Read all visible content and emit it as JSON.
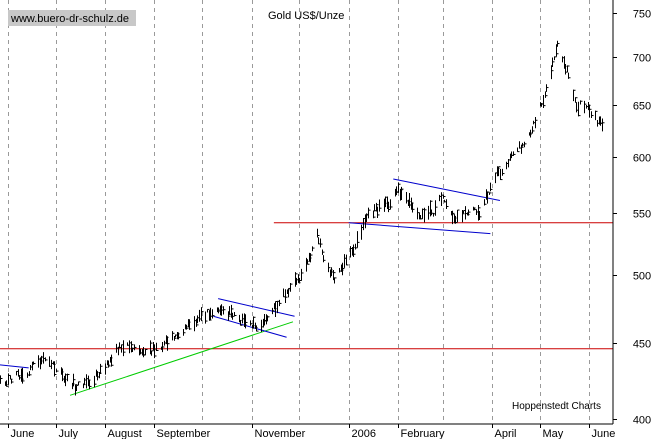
{
  "chart_data": {
    "type": "bar",
    "style": "ohlc",
    "title": "Gold US$/Unze",
    "watermark": "www.buero-dr-schulz.de",
    "credit": "Hoppenstedt Charts",
    "yscale": "log",
    "ylim": [
      397,
      765
    ],
    "yticks": [
      400,
      450,
      500,
      550,
      600,
      650,
      700,
      750
    ],
    "xlim": [
      "2005-05-27",
      "2006-06-16"
    ],
    "months": [
      {
        "label": "June",
        "date": "2005-06-01"
      },
      {
        "label": "July",
        "date": "2005-07-01"
      },
      {
        "label": "August",
        "date": "2005-08-01"
      },
      {
        "label": "September",
        "date": "2005-09-01"
      },
      {
        "label": "November",
        "date": "2005-11-01"
      },
      {
        "label": "2006",
        "date": "2006-01-01"
      },
      {
        "label": "February",
        "date": "2006-02-01"
      },
      {
        "label": "April",
        "date": "2006-04-01"
      },
      {
        "label": "May",
        "date": "2006-05-01"
      },
      {
        "label": "June",
        "date": "2006-06-01"
      }
    ],
    "gridlines_at": [
      "2005-06-01",
      "2005-07-01",
      "2005-08-01",
      "2005-09-01",
      "2005-10-01",
      "2005-11-01",
      "2005-12-01",
      "2006-01-01",
      "2006-02-01",
      "2006-03-01",
      "2006-04-01",
      "2006-05-01",
      "2006-06-01"
    ],
    "price_path": [
      [
        "2005-05-27",
        424
      ],
      [
        "2005-06-10",
        428
      ],
      [
        "2005-06-24",
        440
      ],
      [
        "2005-07-06",
        428
      ],
      [
        "2005-07-14",
        420
      ],
      [
        "2005-07-25",
        426
      ],
      [
        "2005-08-05",
        440
      ],
      [
        "2005-08-12",
        448
      ],
      [
        "2005-08-24",
        444
      ],
      [
        "2005-09-02",
        445
      ],
      [
        "2005-09-12",
        454
      ],
      [
        "2005-09-23",
        462
      ],
      [
        "2005-10-05",
        472
      ],
      [
        "2005-10-14",
        474
      ],
      [
        "2005-10-26",
        466
      ],
      [
        "2005-11-04",
        462
      ],
      [
        "2005-11-11",
        468
      ],
      [
        "2005-11-21",
        485
      ],
      [
        "2005-12-02",
        500
      ],
      [
        "2005-12-09",
        518
      ],
      [
        "2005-12-12",
        535
      ],
      [
        "2005-12-16",
        510
      ],
      [
        "2005-12-23",
        498
      ],
      [
        "2006-01-04",
        520
      ],
      [
        "2006-01-13",
        550
      ],
      [
        "2006-01-24",
        556
      ],
      [
        "2006-02-01",
        570
      ],
      [
        "2006-02-06",
        565
      ],
      [
        "2006-02-13",
        548
      ],
      [
        "2006-02-23",
        552
      ],
      [
        "2006-03-01",
        565
      ],
      [
        "2006-03-08",
        545
      ],
      [
        "2006-03-17",
        552
      ],
      [
        "2006-03-24",
        550
      ],
      [
        "2006-04-04",
        585
      ],
      [
        "2006-04-14",
        600
      ],
      [
        "2006-04-24",
        620
      ],
      [
        "2006-05-05",
        665
      ],
      [
        "2006-05-12",
        712
      ],
      [
        "2006-05-17",
        690
      ],
      [
        "2006-05-24",
        650
      ],
      [
        "2006-06-01",
        645
      ],
      [
        "2006-06-09",
        630
      ]
    ],
    "lines": [
      {
        "color": "#cc0000",
        "points": [
          [
            "2005-05-27",
            446
          ],
          [
            "2006-06-16",
            446
          ]
        ]
      },
      {
        "color": "#cc0000",
        "points": [
          [
            "2005-11-15",
            542
          ],
          [
            "2006-06-16",
            542
          ]
        ]
      },
      {
        "color": "#00cc00",
        "points": [
          [
            "2005-07-10",
            415
          ],
          [
            "2005-11-27",
            465
          ]
        ]
      },
      {
        "color": "#0000cc",
        "points": [
          [
            "2005-05-27",
            435
          ],
          [
            "2005-06-14",
            433
          ]
        ]
      },
      {
        "color": "#0000cc",
        "points": [
          [
            "2005-10-11",
            482
          ],
          [
            "2005-11-28",
            469
          ]
        ]
      },
      {
        "color": "#0000cc",
        "points": [
          [
            "2005-10-08",
            469
          ],
          [
            "2005-11-23",
            454
          ]
        ]
      },
      {
        "color": "#0000cc",
        "points": [
          [
            "2006-01-29",
            580
          ],
          [
            "2006-04-06",
            561
          ]
        ]
      },
      {
        "color": "#0000cc",
        "points": [
          [
            "2006-01-01",
            542
          ],
          [
            "2006-03-31",
            533
          ]
        ]
      }
    ],
    "legend": "none",
    "grid": "vertical dashed at month starts"
  }
}
